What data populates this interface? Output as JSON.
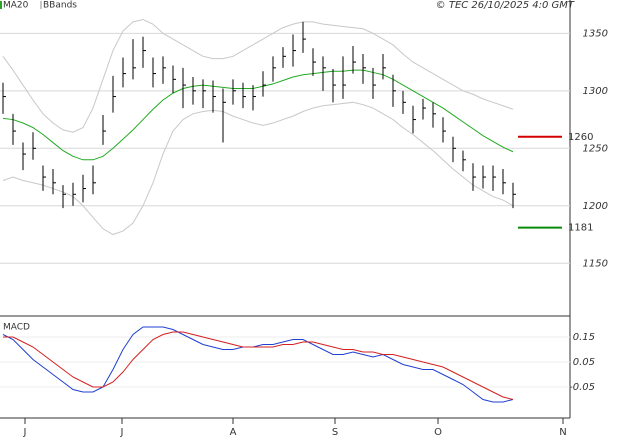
{
  "chart_data": [
    {
      "type": "ohlc",
      "source": "© TEC 26/10/2025 4:0 GMT",
      "xlim": [
        -0.3,
        56.7
      ],
      "xticks": [
        {
          "value": 2.2,
          "label": "J"
        },
        {
          "value": 11.9,
          "label": "J"
        },
        {
          "value": 23,
          "label": "A"
        },
        {
          "value": 33.2,
          "label": "S"
        },
        {
          "value": 43.5,
          "label": "O"
        },
        {
          "value": 56,
          "label": "N"
        }
      ],
      "ylim": [
        1105,
        1379
      ],
      "yticks": [
        1150,
        1200,
        1250,
        1300,
        1350
      ],
      "color": "#000000",
      "high": [
        1307,
        1280,
        1255,
        1264,
        1235,
        1232,
        1218,
        1220,
        1227,
        1235,
        1279,
        1313,
        1329,
        1345,
        1347,
        1329,
        1330,
        1322,
        1320,
        1312,
        1310,
        1309,
        1302,
        1310,
        1307,
        1305,
        1317,
        1330,
        1338,
        1349,
        1360,
        1337,
        1330,
        1319,
        1330,
        1339,
        1332,
        1320,
        1332,
        1314,
        1300,
        1287,
        1293,
        1290,
        1277,
        1260,
        1248,
        1237,
        1235,
        1235,
        1232,
        1220
      ],
      "low": [
        1280,
        1253,
        1231,
        1240,
        1213,
        1210,
        1198,
        1200,
        1203,
        1210,
        1253,
        1281,
        1303,
        1310,
        1320,
        1303,
        1306,
        1298,
        1285,
        1288,
        1285,
        1281,
        1255,
        1288,
        1285,
        1283,
        1295,
        1308,
        1320,
        1321,
        1333,
        1313,
        1300,
        1290,
        1293,
        1315,
        1306,
        1293,
        1310,
        1286,
        1280,
        1263,
        1275,
        1268,
        1255,
        1238,
        1230,
        1213,
        1215,
        1213,
        1210,
        1198
      ],
      "close": [
        1295,
        1265,
        1245,
        1250,
        1225,
        1220,
        1210,
        1210,
        1215,
        1220,
        1265,
        1295,
        1315,
        1320,
        1335,
        1315,
        1320,
        1310,
        1305,
        1300,
        1300,
        1295,
        1290,
        1300,
        1295,
        1295,
        1305,
        1320,
        1330,
        1335,
        1345,
        1325,
        1320,
        1305,
        1305,
        1325,
        1320,
        1305,
        1320,
        1300,
        1290,
        1275,
        1285,
        1280,
        1265,
        1250,
        1240,
        1225,
        1225,
        1225,
        1220,
        1210
      ],
      "series": [
        {
          "name": "MA20",
          "color": "#22aa22",
          "values": [
            1276,
            1275,
            1272,
            1268,
            1262,
            1255,
            1248,
            1243,
            1240,
            1240,
            1243,
            1250,
            1258,
            1266,
            1275,
            1284,
            1292,
            1298,
            1302,
            1304,
            1305,
            1304,
            1303,
            1302,
            1302,
            1302,
            1304,
            1306,
            1309,
            1312,
            1314,
            1315,
            1316,
            1317,
            1317,
            1318,
            1318,
            1316,
            1314,
            1310,
            1305,
            1300,
            1295,
            1290,
            1285,
            1279,
            1273,
            1267,
            1261,
            1256,
            1251,
            1247
          ]
        },
        {
          "name": "BBands",
          "color": "#c8c8c8",
          "upper": [
            1330,
            1318,
            1305,
            1292,
            1280,
            1272,
            1266,
            1264,
            1268,
            1285,
            1310,
            1335,
            1352,
            1360,
            1362,
            1358,
            1350,
            1345,
            1340,
            1335,
            1330,
            1328,
            1328,
            1330,
            1335,
            1340,
            1345,
            1350,
            1355,
            1358,
            1360,
            1360,
            1358,
            1357,
            1356,
            1355,
            1354,
            1350,
            1345,
            1340,
            1332,
            1325,
            1320,
            1315,
            1310,
            1305,
            1300,
            1297,
            1293,
            1290,
            1287,
            1284
          ],
          "lower": [
            1222,
            1225,
            1222,
            1220,
            1218,
            1215,
            1212,
            1208,
            1200,
            1190,
            1180,
            1175,
            1178,
            1185,
            1200,
            1220,
            1245,
            1265,
            1275,
            1280,
            1282,
            1283,
            1282,
            1278,
            1275,
            1272,
            1270,
            1272,
            1275,
            1278,
            1282,
            1285,
            1287,
            1288,
            1289,
            1290,
            1288,
            1285,
            1280,
            1275,
            1268,
            1262,
            1255,
            1248,
            1240,
            1232,
            1225,
            1218,
            1213,
            1208,
            1205,
            1200
          ]
        }
      ],
      "levels": [
        {
          "value": 1260,
          "color": "#d40000"
        },
        {
          "value": 1181,
          "color": "#0a8a0a"
        }
      ]
    },
    {
      "type": "line",
      "title": "MACD",
      "ylim": [
        -0.174,
        0.226
      ],
      "yticks": [
        0.15,
        0.05,
        -0.05
      ],
      "series": [
        {
          "color": "#1f3fd0",
          "values": [
            0.16,
            0.14,
            0.1,
            0.06,
            0.03,
            0.0,
            -0.03,
            -0.06,
            -0.07,
            -0.07,
            -0.05,
            0.02,
            0.1,
            0.16,
            0.19,
            0.19,
            0.19,
            0.18,
            0.16,
            0.14,
            0.12,
            0.11,
            0.1,
            0.1,
            0.11,
            0.11,
            0.12,
            0.12,
            0.13,
            0.14,
            0.14,
            0.12,
            0.1,
            0.08,
            0.08,
            0.09,
            0.08,
            0.07,
            0.08,
            0.06,
            0.04,
            0.03,
            0.02,
            0.02,
            0.0,
            -0.02,
            -0.04,
            -0.07,
            -0.1,
            -0.11,
            -0.11,
            -0.1
          ]
        },
        {
          "color": "#d42020",
          "values": [
            0.15,
            0.15,
            0.13,
            0.11,
            0.08,
            0.05,
            0.02,
            -0.01,
            -0.03,
            -0.05,
            -0.05,
            -0.03,
            0.01,
            0.06,
            0.1,
            0.14,
            0.16,
            0.17,
            0.17,
            0.16,
            0.15,
            0.14,
            0.13,
            0.12,
            0.11,
            0.11,
            0.11,
            0.11,
            0.12,
            0.12,
            0.13,
            0.13,
            0.12,
            0.11,
            0.1,
            0.1,
            0.09,
            0.09,
            0.08,
            0.08,
            0.07,
            0.06,
            0.05,
            0.04,
            0.03,
            0.01,
            -0.01,
            -0.03,
            -0.05,
            -0.07,
            -0.09,
            -0.1
          ]
        }
      ]
    }
  ]
}
